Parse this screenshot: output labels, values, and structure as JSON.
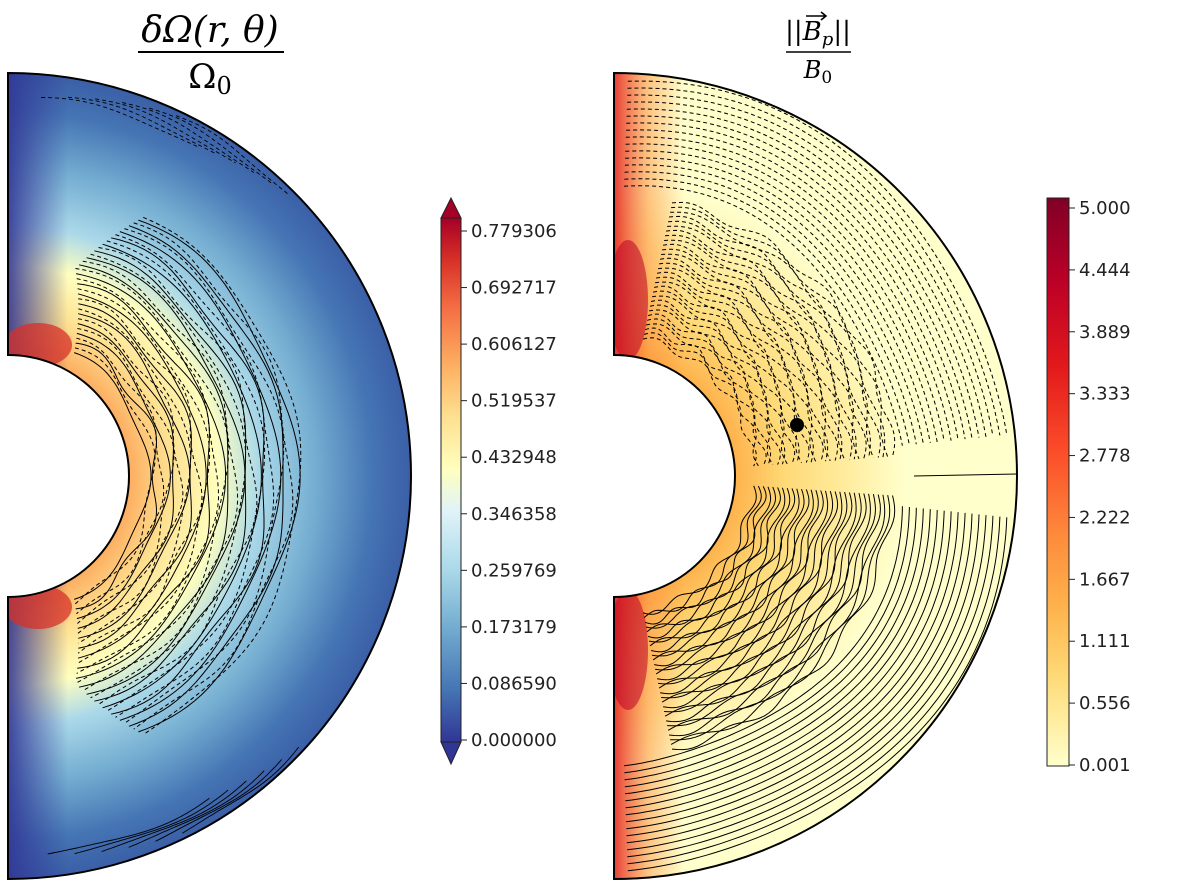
{
  "chart_data": [
    {
      "type": "heatmap",
      "title": "δΩ(r, θ) / Ω0",
      "title_parts": {
        "numerator": "δΩ(r, θ)",
        "denominator": "Ω",
        "denominator_sub": "0"
      },
      "colormap": "RdYlBu_r",
      "colorbar": {
        "ticks": [
          "0.779306",
          "0.692717",
          "0.606127",
          "0.519537",
          "0.432948",
          "0.346358",
          "0.259769",
          "0.173179",
          "0.086590",
          "0.000000"
        ],
        "range": [
          0.0,
          0.779306
        ],
        "extend": "both"
      },
      "contours": "solid (positive) and dashed (negative) field lines"
    },
    {
      "type": "heatmap",
      "title": "||B_p|| / B0",
      "title_parts": {
        "numerator": "||B",
        "num_sub": "p",
        "num_tail": "||",
        "denominator": "B",
        "denominator_sub": "0"
      },
      "colormap": "YlOrRd",
      "colorbar": {
        "ticks": [
          "5.000",
          "4.444",
          "3.889",
          "3.333",
          "2.778",
          "2.222",
          "1.667",
          "1.111",
          "0.556",
          "0.001"
        ],
        "range": [
          0.001,
          5.0
        ],
        "extend": "neither"
      },
      "contours": "solid and dashed poloidal field lines",
      "marker": "black dot"
    }
  ],
  "colors": {
    "rdylbu": [
      "#313695",
      "#4575b4",
      "#74add1",
      "#abd9e9",
      "#e0f3f8",
      "#ffffbf",
      "#fee090",
      "#fdae61",
      "#f46d43",
      "#d73027",
      "#a50026"
    ],
    "ylorrd": [
      "#ffffcc",
      "#ffeda0",
      "#fed976",
      "#feb24c",
      "#fd8d3c",
      "#fc4e2a",
      "#e31a1c",
      "#bd0026",
      "#800026"
    ]
  }
}
